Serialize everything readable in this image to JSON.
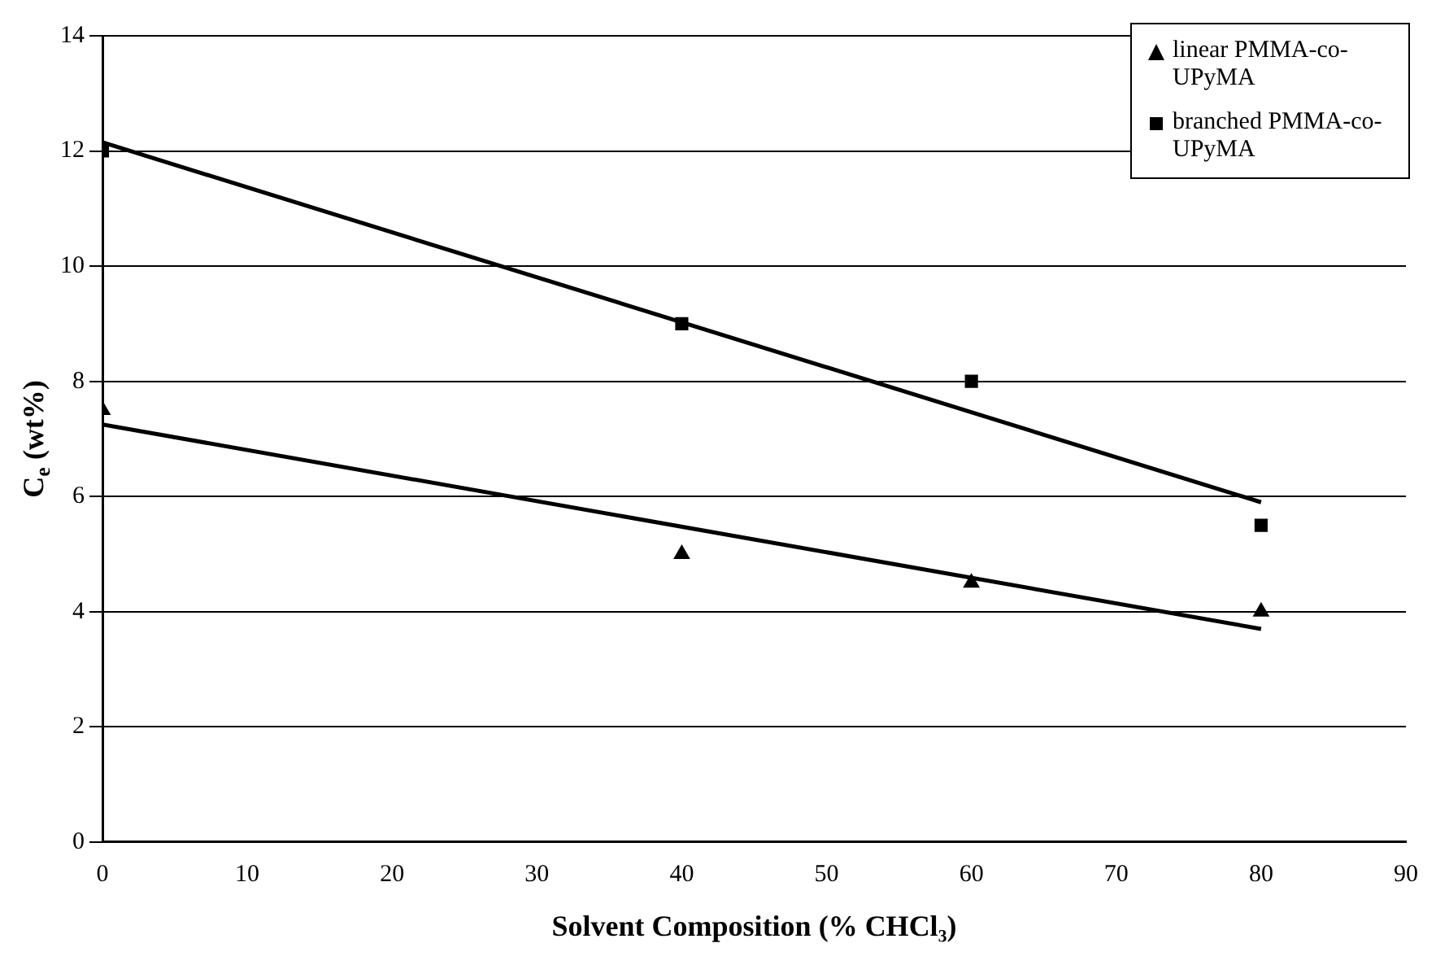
{
  "chart_data": {
    "type": "scatter",
    "xlabel": "Solvent Composition (% CHCl₃)",
    "ylabel": "C$_{e}$ (wt%)",
    "xlim": [
      0,
      90
    ],
    "xticks": [
      0,
      10,
      20,
      30,
      40,
      50,
      60,
      70,
      80,
      90
    ],
    "ylim": [
      0,
      14
    ],
    "yticks": [
      0,
      2,
      4,
      6,
      8,
      10,
      12,
      14
    ],
    "grid": "y",
    "legend": "top right",
    "series": [
      {
        "name": "linear PMMA-co-UPyMA",
        "color": "#000000",
        "marker": "triangle",
        "x": [
          0,
          40,
          60,
          80
        ],
        "values": [
          7.5,
          5,
          4.5,
          4
        ]
      },
      {
        "name": "branched PMMA-co-UPyMA",
        "color": "#000000",
        "marker": "square",
        "x": [
          0,
          40,
          60,
          80
        ],
        "values": [
          12,
          9,
          8,
          5.5
        ]
      },
      {
        "type": "line",
        "color": "#000000",
        "marker": "none",
        "x": [
          0,
          80
        ],
        "values": [
          7.25,
          3.7
        ]
      },
      {
        "type": "line",
        "color": "#000000",
        "marker": "none",
        "x": [
          0,
          80
        ],
        "values": [
          12.15,
          5.9
        ]
      }
    ]
  }
}
